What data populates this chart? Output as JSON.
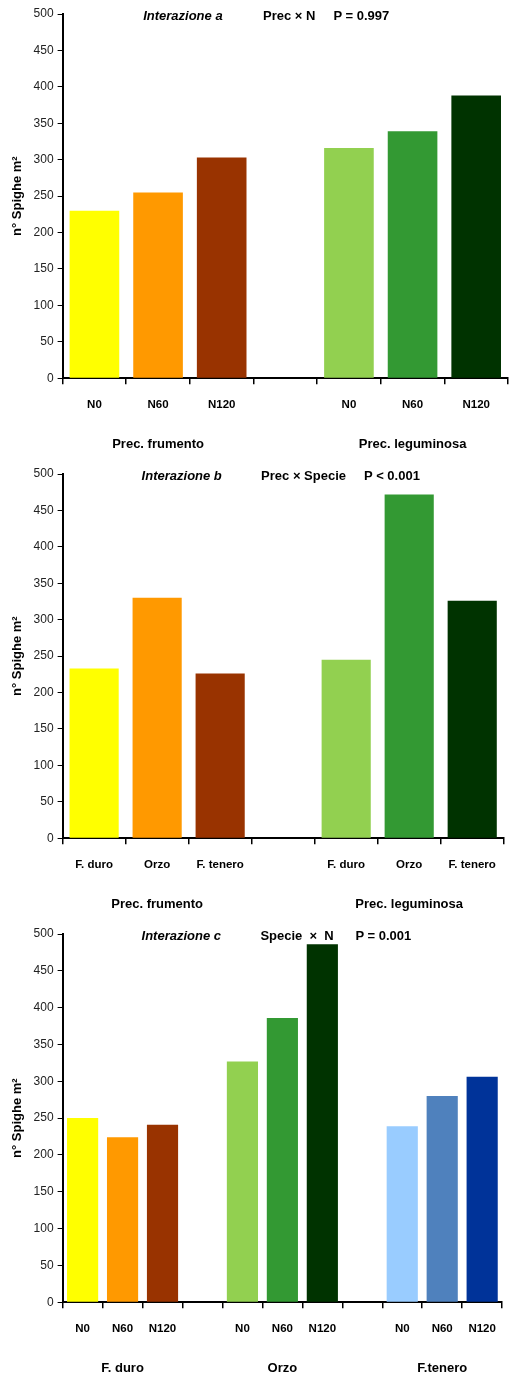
{
  "chart_data": [
    {
      "type": "bar",
      "title": "Interazione a",
      "subtitle": "Prec × N     P = 0.997",
      "ylabel": "n° Spighe m²",
      "categories": [
        "N0",
        "N60",
        "N120",
        null,
        "N0",
        "N60",
        "N120"
      ],
      "values": [
        230,
        255,
        303,
        null,
        316,
        339,
        388
      ],
      "colors": [
        "#ffff00",
        "#ff9900",
        "#993300",
        null,
        "#92d050",
        "#339933",
        "#003300"
      ],
      "ylim": [
        0,
        500
      ],
      "yticks": [
        0,
        50,
        100,
        150,
        200,
        250,
        300,
        350,
        400,
        450,
        500
      ],
      "annotations": [
        "Prec. frumento",
        "Prec. leguminosa"
      ]
    },
    {
      "type": "bar",
      "title": "Interazione b",
      "subtitle": "Prec × Specie     P < 0.001",
      "ylabel": "n° Spighe m²",
      "categories": [
        "F. duro",
        "Orzo",
        "F. tenero",
        null,
        "F. duro",
        "Orzo",
        "F. tenero"
      ],
      "values": [
        233,
        330,
        226,
        null,
        245,
        472,
        326
      ],
      "colors": [
        "#ffff00",
        "#ff9900",
        "#993300",
        null,
        "#92d050",
        "#339933",
        "#003300"
      ],
      "ylim": [
        0,
        500
      ],
      "yticks": [
        0,
        50,
        100,
        150,
        200,
        250,
        300,
        350,
        400,
        450,
        500
      ],
      "annotations": [
        "Prec. frumento",
        "Prec. leguminosa"
      ]
    },
    {
      "type": "bar",
      "title": "Interazione c",
      "subtitle": "Specie  ×  N      P = 0.001",
      "ylabel": "n° Spighe m²",
      "categories": [
        "N0",
        "N60",
        "N120",
        null,
        "N0",
        "N60",
        "N120",
        null,
        "N0",
        "N60",
        "N120"
      ],
      "values": [
        250,
        224,
        241,
        null,
        327,
        386,
        486,
        null,
        239,
        280,
        306
      ],
      "colors": [
        "#ffff00",
        "#ff9900",
        "#993300",
        null,
        "#92d050",
        "#339933",
        "#003300",
        null,
        "#99ccff",
        "#4f81bd",
        "#003399"
      ],
      "ylim": [
        0,
        500
      ],
      "yticks": [
        0,
        50,
        100,
        150,
        200,
        250,
        300,
        350,
        400,
        450,
        500
      ],
      "annotations": [
        "F. duro",
        "Orzo",
        "F.tenero"
      ]
    }
  ]
}
